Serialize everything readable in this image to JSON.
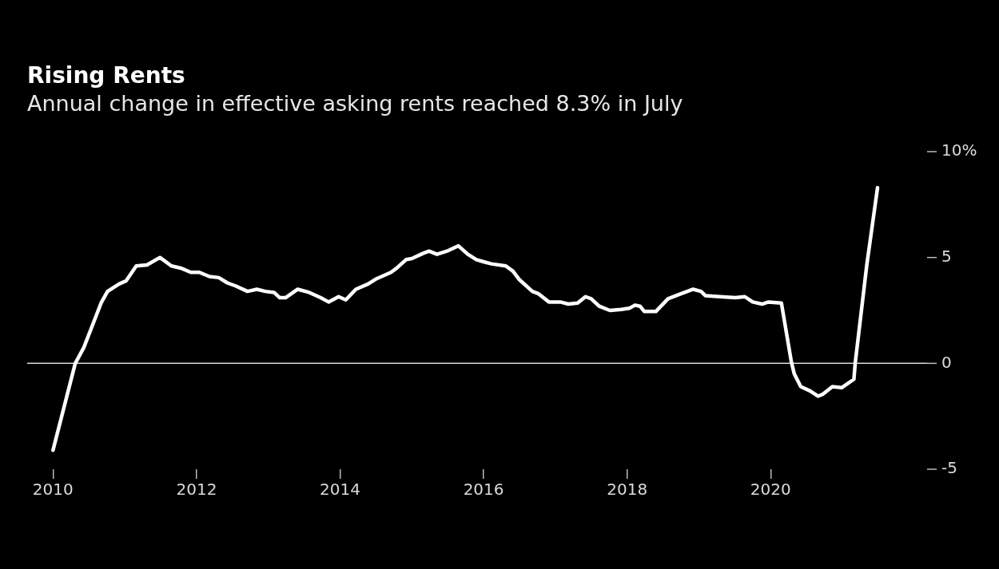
{
  "chart_data": {
    "type": "line",
    "title": "Rising Rents",
    "subtitle": "Annual change in effective asking rents reached 8.3% in July",
    "x": [
      2010.0,
      2010.31,
      2010.43,
      2010.67,
      2010.76,
      2010.92,
      2011.02,
      2011.16,
      2011.31,
      2011.49,
      2011.65,
      2011.78,
      2011.92,
      2012.04,
      2012.18,
      2012.31,
      2012.43,
      2012.55,
      2012.71,
      2012.84,
      2012.96,
      2013.08,
      2013.16,
      2013.24,
      2013.41,
      2013.57,
      2013.73,
      2013.84,
      2013.98,
      2014.08,
      2014.22,
      2014.39,
      2014.51,
      2014.71,
      2014.79,
      2014.92,
      2015.0,
      2015.16,
      2015.24,
      2015.35,
      2015.49,
      2015.65,
      2015.78,
      2015.9,
      2016.0,
      2016.11,
      2016.31,
      2016.41,
      2016.5,
      2016.68,
      2016.76,
      2016.91,
      2017.07,
      2017.18,
      2017.31,
      2017.42,
      2017.5,
      2017.61,
      2017.76,
      2017.92,
      2018.03,
      2018.11,
      2018.18,
      2018.24,
      2018.4,
      2018.57,
      2018.72,
      2018.92,
      2019.03,
      2019.09,
      2019.29,
      2019.51,
      2019.64,
      2019.75,
      2019.88,
      2019.97,
      2020.15,
      2020.29,
      2020.33,
      2020.42,
      2020.55,
      2020.66,
      2020.73,
      2020.86,
      2020.99,
      2021.16,
      2021.18,
      2021.34,
      2021.49
    ],
    "series": [
      {
        "color": "#ffffff",
        "values": [
          -4.1,
          0,
          0.75,
          2.85,
          3.4,
          3.75,
          3.9,
          4.6,
          4.65,
          5.0,
          4.6,
          4.5,
          4.3,
          4.3,
          4.1,
          4.05,
          3.8,
          3.65,
          3.4,
          3.5,
          3.4,
          3.35,
          3.1,
          3.1,
          3.5,
          3.35,
          3.1,
          2.9,
          3.15,
          3.0,
          3.5,
          3.75,
          4.0,
          4.3,
          4.5,
          4.9,
          4.95,
          5.2,
          5.3,
          5.15,
          5.3,
          5.55,
          5.15,
          4.9,
          4.8,
          4.7,
          4.6,
          4.35,
          3.95,
          3.4,
          3.3,
          2.9,
          2.9,
          2.8,
          2.85,
          3.15,
          3.05,
          2.7,
          2.5,
          2.55,
          2.6,
          2.75,
          2.7,
          2.45,
          2.45,
          3.05,
          3.25,
          3.5,
          3.4,
          3.2,
          3.15,
          3.1,
          3.15,
          2.9,
          2.8,
          2.9,
          2.85,
          0.05,
          -0.5,
          -1.1,
          -1.3,
          -1.55,
          -1.45,
          -1.1,
          -1.15,
          -0.75,
          0.05,
          4.65,
          8.3
        ]
      }
    ],
    "xlim": [
      2009.64,
      2022.18
    ],
    "xticks": [
      2010,
      2012,
      2014,
      2016,
      2018,
      2020
    ],
    "ylim": [
      -5,
      10
    ],
    "yticks": [
      -5,
      0,
      5,
      {
        "value": 10,
        "label": "10%"
      }
    ],
    "ref_lines": [
      {
        "axis": "y",
        "value": 0,
        "color": "#d9d9d9"
      }
    ],
    "grid": false,
    "legend": false,
    "marker": "none",
    "line_style": "solid"
  }
}
